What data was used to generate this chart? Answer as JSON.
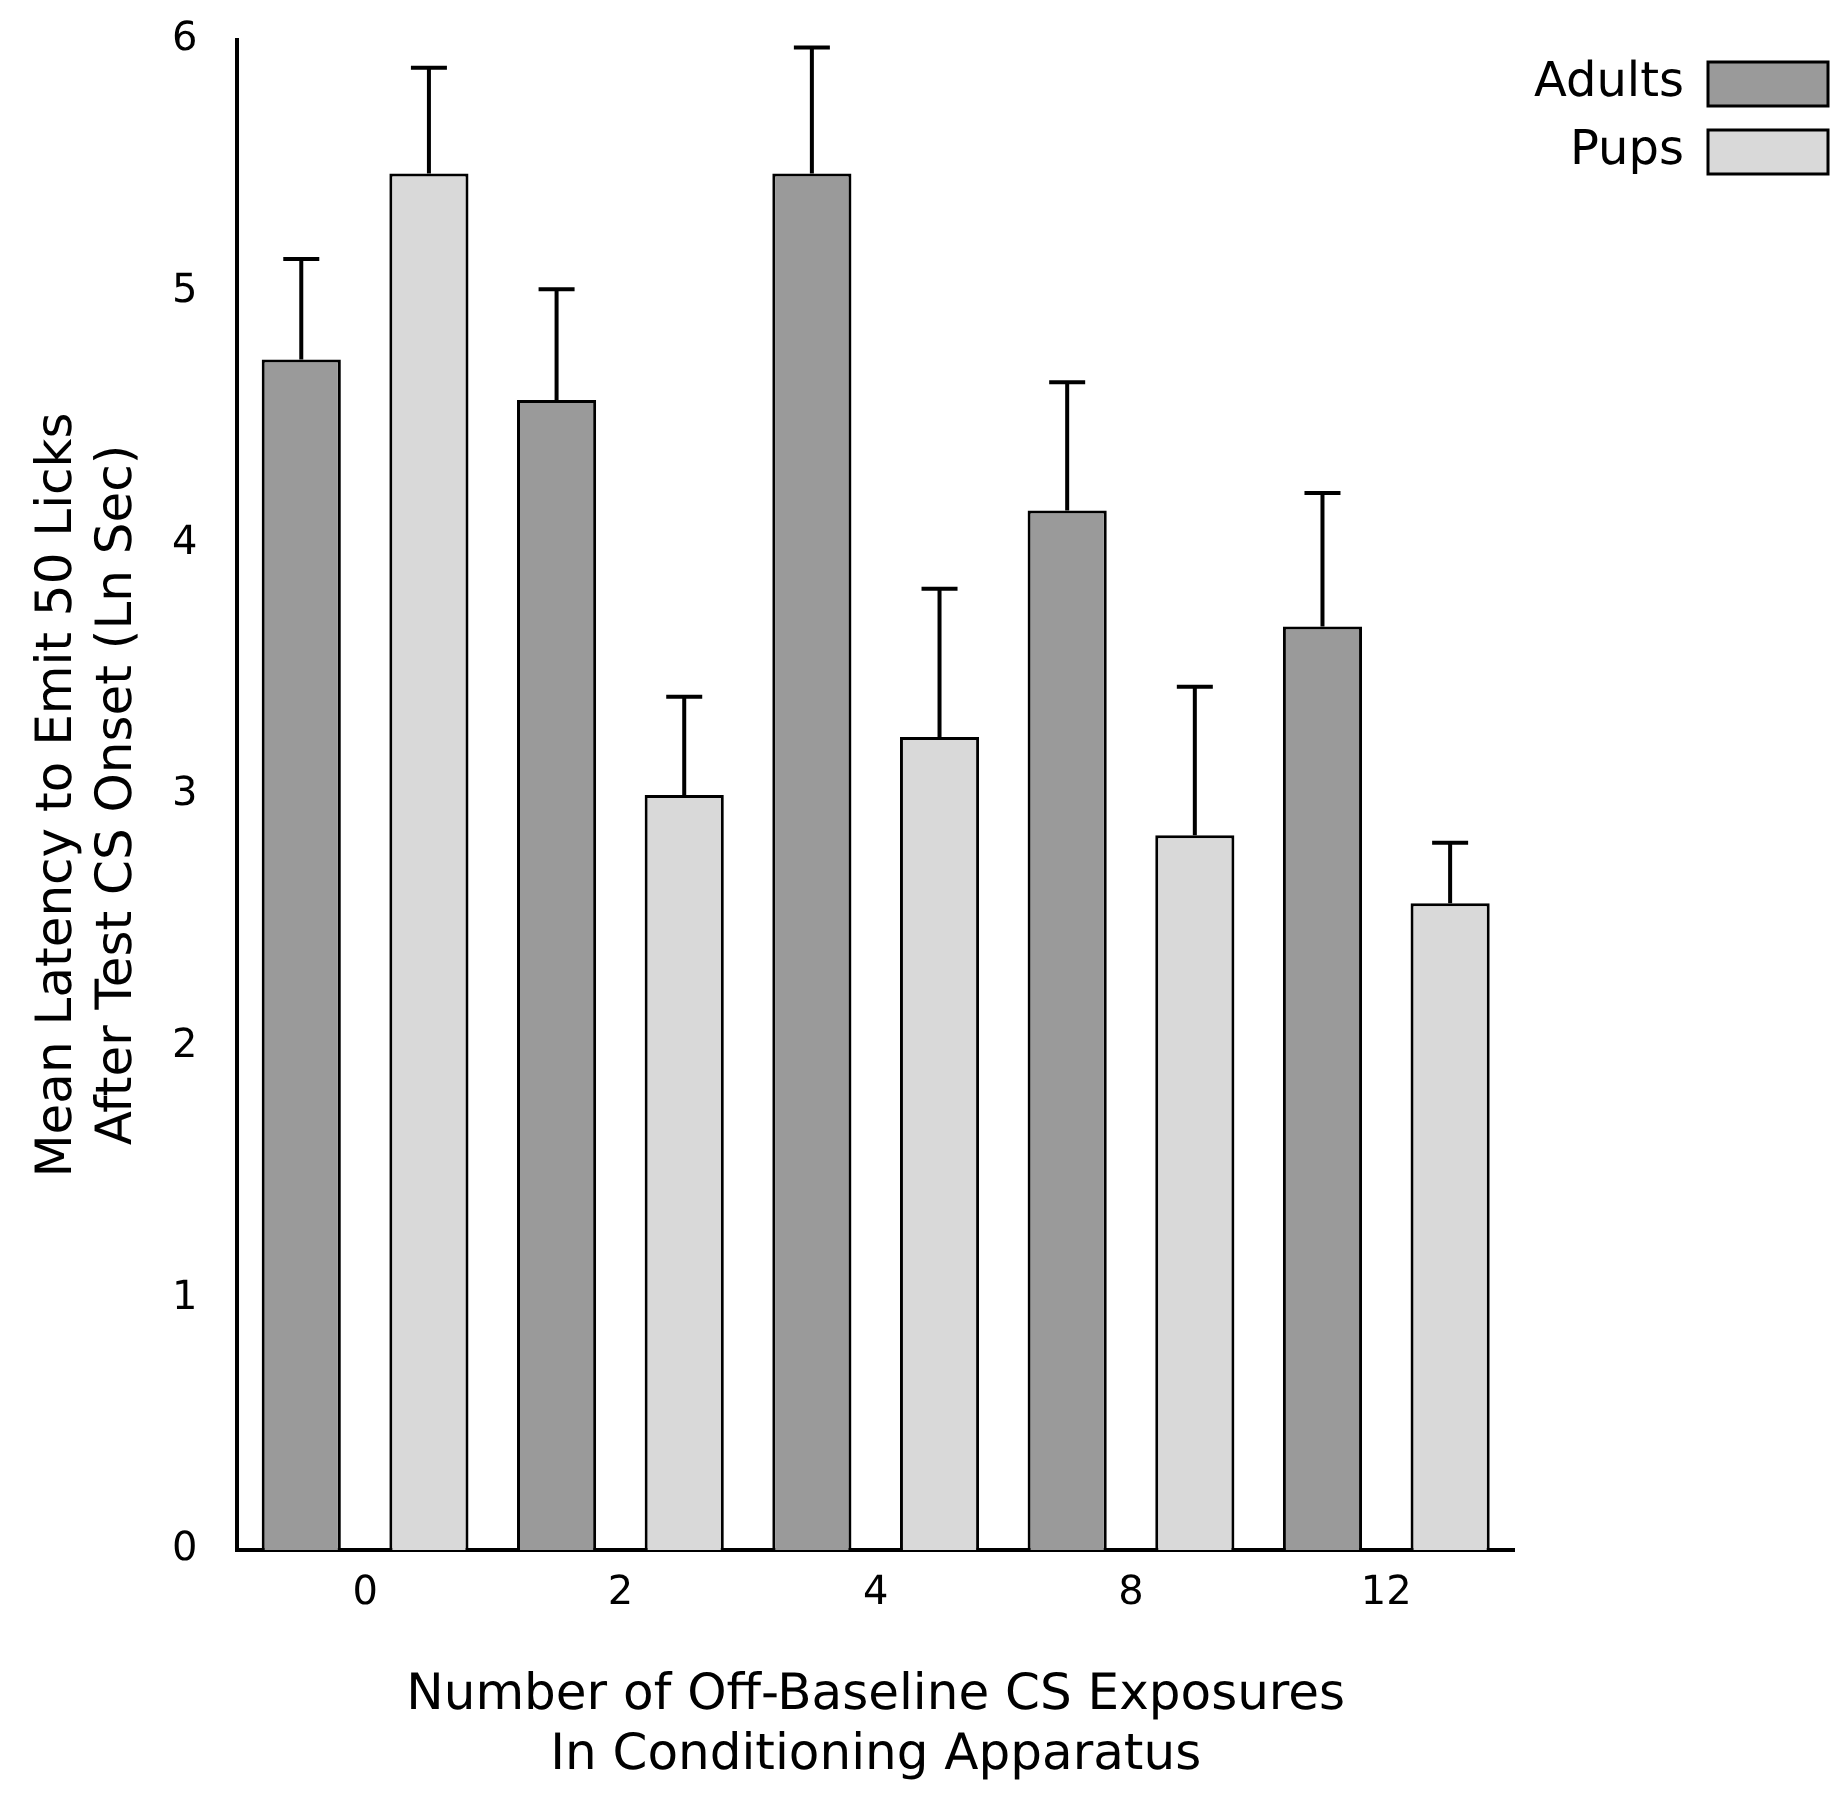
{
  "chart_data": {
    "type": "bar",
    "xlabel": "Number of Off-Baseline CS Exposures\nIn Conditioning Apparatus",
    "ylabel": "Mean Latency to Emit 50 Licks\nAfter Test CS Onset (Ln Sec)",
    "categories": [
      "0",
      "2",
      "4",
      "8",
      "12"
    ],
    "series": [
      {
        "name": "Adults",
        "color": "#9a9a9a",
        "values": [
          4.73,
          4.57,
          5.47,
          4.13,
          3.67
        ],
        "errors": [
          [
            4.73,
            5.13
          ],
          [
            4.57,
            5.01
          ],
          [
            5.47,
            5.97
          ],
          [
            4.13,
            4.64
          ],
          [
            3.67,
            4.2
          ]
        ]
      },
      {
        "name": "Pups",
        "color": "#d9d9d9",
        "values": [
          5.47,
          3.0,
          3.23,
          2.84,
          2.57
        ],
        "errors": [
          [
            5.47,
            5.89
          ],
          [
            3.0,
            3.39
          ],
          [
            3.23,
            3.82
          ],
          [
            2.84,
            3.43
          ],
          [
            2.57,
            2.81
          ]
        ]
      }
    ],
    "ylim": [
      0,
      6
    ],
    "yticks": [
      0,
      1,
      2,
      3,
      4,
      5,
      6
    ],
    "grid": false,
    "legend": "top right"
  }
}
